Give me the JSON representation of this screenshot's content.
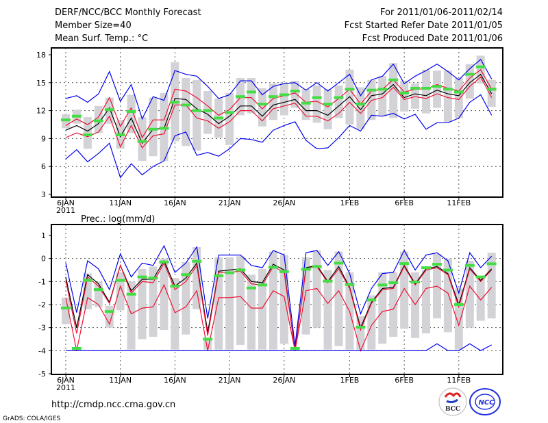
{
  "header": {
    "title": "DERF/NCC/BCC Monthly Forecast",
    "member_size": "Member Size=40",
    "variable": "Mean Surf. Temp.: °C",
    "period": "For 2011/01/06-2011/02/14",
    "started": "Fcst Started Refer Date 2011/01/05",
    "produced": "Fcst Produced Date 2011/01/06"
  },
  "footer": {
    "url": "http://cmdp.ncc.cma.gov.cn",
    "credit": "GrADS: COLA/IGES",
    "logo_left": "BCC",
    "logo_right": "NCC"
  },
  "colors": {
    "mean": "#000000",
    "spread": "#ee1133",
    "extreme": "#0000ee",
    "obs": "#44dd44",
    "range": "#d3d3d7"
  },
  "chart_data": [
    {
      "type": "line",
      "title": "Mean Surf. Temp.: °C",
      "ylim": [
        3,
        18
      ],
      "yticks": [
        "3",
        "6",
        "9",
        "12",
        "15",
        "18"
      ],
      "ytick_values": [
        3,
        6,
        9,
        12,
        15,
        18
      ],
      "xticks": [
        "6JAN",
        "11JAN",
        "16JAN",
        "21JAN",
        "26JAN",
        "1FEB",
        "6FEB",
        "11FEB"
      ],
      "xtick_index": [
        0,
        5,
        10,
        15,
        20,
        26,
        31,
        36
      ],
      "year_label": "2011",
      "grid": true,
      "days": 40,
      "series": [
        {
          "name": "ensemble mean",
          "values": [
            9.9,
            10.4,
            9.8,
            10.6,
            12.3,
            9.2,
            11.2,
            8.5,
            10.0,
            10.1,
            13.3,
            13.2,
            12.2,
            11.6,
            10.6,
            11.4,
            12.5,
            12.5,
            11.4,
            12.6,
            12.9,
            13.2,
            12.0,
            12.0,
            11.5,
            12.5,
            13.5,
            12.1,
            13.6,
            13.8,
            14.8,
            13.4,
            13.8,
            13.6,
            14.2,
            13.8,
            13.6,
            15.0,
            15.9,
            13.8
          ]
        },
        {
          "name": "spread upper",
          "values": [
            10.4,
            11.1,
            10.5,
            11.3,
            13.4,
            10.3,
            12.3,
            9.1,
            11.0,
            11.0,
            14.3,
            14.1,
            13.4,
            12.5,
            11.5,
            12.1,
            13.4,
            13.4,
            12.2,
            13.3,
            13.6,
            13.9,
            12.9,
            13.0,
            12.4,
            13.3,
            14.3,
            12.7,
            14.1,
            14.3,
            15.3,
            14.0,
            14.3,
            14.3,
            14.8,
            14.4,
            14.1,
            15.5,
            16.4,
            14.3
          ]
        },
        {
          "name": "spread lower",
          "values": [
            9.1,
            9.6,
            9.2,
            9.7,
            11.4,
            8.1,
            10.4,
            8.0,
            9.3,
            9.5,
            12.6,
            12.6,
            11.2,
            10.9,
            10.1,
            10.8,
            12.0,
            12.0,
            10.9,
            12.2,
            12.5,
            12.8,
            11.4,
            11.4,
            10.9,
            11.7,
            12.9,
            11.7,
            13.1,
            13.4,
            14.5,
            13.2,
            13.5,
            13.3,
            13.8,
            13.4,
            13.2,
            14.6,
            15.6,
            13.4
          ]
        },
        {
          "name": "ensemble max",
          "values": [
            13.3,
            13.6,
            12.9,
            13.8,
            16.2,
            13.0,
            14.8,
            11.1,
            13.5,
            13.1,
            16.3,
            15.9,
            15.7,
            14.6,
            13.3,
            13.7,
            15.2,
            15.2,
            13.7,
            14.6,
            14.9,
            15.0,
            14.2,
            15.0,
            14.1,
            15.0,
            15.9,
            13.6,
            15.3,
            15.7,
            17.0,
            14.9,
            15.7,
            16.3,
            17.0,
            16.2,
            15.3,
            16.5,
            17.5,
            15.4
          ]
        },
        {
          "name": "ensemble min",
          "values": [
            6.8,
            7.8,
            6.5,
            7.4,
            8.5,
            4.8,
            6.3,
            5.1,
            6.0,
            6.6,
            9.3,
            9.7,
            7.2,
            7.5,
            7.1,
            7.9,
            9.0,
            8.9,
            8.6,
            9.9,
            10.4,
            10.8,
            8.8,
            7.9,
            8.0,
            9.1,
            10.4,
            9.8,
            11.5,
            11.4,
            11.7,
            11.1,
            11.6,
            10.0,
            10.7,
            10.7,
            11.2,
            12.9,
            13.7,
            11.5
          ]
        },
        {
          "name": "observed / reference",
          "values": [
            11.0,
            11.4,
            9.4,
            10.9,
            12.1,
            9.4,
            11.9,
            8.7,
            10.0,
            10.1,
            12.9,
            12.6,
            12.0,
            12.0,
            11.2,
            11.8,
            13.5,
            14.0,
            12.7,
            13.5,
            13.7,
            14.1,
            12.8,
            13.4,
            12.7,
            13.4,
            14.3,
            12.7,
            14.2,
            14.3,
            15.3,
            13.9,
            14.4,
            14.4,
            14.6,
            14.3,
            14.0,
            15.9,
            16.7,
            14.3
          ]
        }
      ],
      "ranges": [
        [
          10.1,
          11.6
        ],
        [
          10.6,
          12.1
        ],
        [
          7.9,
          11.3
        ],
        [
          9.6,
          12.5
        ],
        [
          10.6,
          13.4
        ],
        [
          7.9,
          11.0
        ],
        [
          9.6,
          13.7
        ],
        [
          6.6,
          11.3
        ],
        [
          7.1,
          13.4
        ],
        [
          6.6,
          13.9
        ],
        [
          8.7,
          17.2
        ],
        [
          8.2,
          15.5
        ],
        [
          7.7,
          15.3
        ],
        [
          9.5,
          14.1
        ],
        [
          9.1,
          13.3
        ],
        [
          8.3,
          13.9
        ],
        [
          11.5,
          15.5
        ],
        [
          11.7,
          15.5
        ],
        [
          10.3,
          14.4
        ],
        [
          11.0,
          14.9
        ],
        [
          11.5,
          15.0
        ],
        [
          12.3,
          15.2
        ],
        [
          11.0,
          14.3
        ],
        [
          10.7,
          14.7
        ],
        [
          10.0,
          14.3
        ],
        [
          11.2,
          14.7
        ],
        [
          10.5,
          16.4
        ],
        [
          10.0,
          14.5
        ],
        [
          11.0,
          15.3
        ],
        [
          11.4,
          15.7
        ],
        [
          11.2,
          17.1
        ],
        [
          11.9,
          15.2
        ],
        [
          12.2,
          14.9
        ],
        [
          11.7,
          16.4
        ],
        [
          12.3,
          16.3
        ],
        [
          10.8,
          16.3
        ],
        [
          11.2,
          15.5
        ],
        [
          13.3,
          17.0
        ],
        [
          14.9,
          17.9
        ],
        [
          12.4,
          15.3
        ]
      ]
    },
    {
      "type": "line",
      "title": "Prec.: log(mm/d)",
      "ylim": [
        -5,
        1
      ],
      "yticks": [
        "-5",
        "-4",
        "-3",
        "-2",
        "-1",
        "0",
        "1"
      ],
      "ytick_values": [
        -5,
        -4,
        -3,
        -2,
        -1,
        0,
        1
      ],
      "xticks": [
        "6JAN",
        "11JAN",
        "16JAN",
        "21JAN",
        "26JAN",
        "1FEB",
        "6FEB",
        "11FEB"
      ],
      "xtick_index": [
        0,
        5,
        10,
        15,
        20,
        26,
        31,
        36
      ],
      "year_label": "2011",
      "grid": true,
      "days": 40,
      "series": [
        {
          "name": "ensemble mean",
          "values": [
            -0.8,
            -3.0,
            -0.7,
            -1.1,
            -1.9,
            -0.3,
            -1.4,
            -0.9,
            -0.9,
            -0.1,
            -1.2,
            -0.85,
            -0.2,
            -3.2,
            -0.55,
            -0.5,
            -0.45,
            -1.0,
            -1.05,
            -0.25,
            -0.5,
            -4.0,
            -0.4,
            -0.3,
            -1.0,
            -0.35,
            -1.25,
            -3.0,
            -1.9,
            -1.3,
            -1.25,
            -0.3,
            -1.1,
            -0.45,
            -0.35,
            -0.65,
            -2.0,
            -0.4,
            -0.95,
            -0.45
          ]
        },
        {
          "name": "spread upper",
          "values": [
            -0.95,
            -3.25,
            -0.8,
            -1.2,
            -1.95,
            -0.3,
            -1.5,
            -1.0,
            -1.05,
            -0.2,
            -1.35,
            -1.0,
            -0.3,
            -3.35,
            -0.6,
            -0.6,
            -0.55,
            -1.1,
            -1.15,
            -0.35,
            -0.6,
            -4.0,
            -0.45,
            -0.35,
            -1.05,
            -0.45,
            -1.3,
            -3.1,
            -1.95,
            -1.35,
            -1.3,
            -0.35,
            -1.15,
            -0.5,
            -0.4,
            -0.7,
            -2.1,
            -0.45,
            -1.0,
            -0.5
          ]
        },
        {
          "name": "spread lower",
          "values": [
            -1.7,
            -4.0,
            -1.7,
            -2.0,
            -2.85,
            -1.2,
            -2.4,
            -2.15,
            -2.1,
            -1.15,
            -2.35,
            -2.1,
            -1.4,
            -4.0,
            -1.7,
            -1.7,
            -1.65,
            -2.15,
            -2.15,
            -1.4,
            -1.65,
            -4.0,
            -1.4,
            -1.3,
            -1.95,
            -1.4,
            -2.3,
            -4.0,
            -2.9,
            -2.3,
            -2.2,
            -1.3,
            -2.0,
            -1.3,
            -1.2,
            -1.5,
            -2.9,
            -1.2,
            -1.8,
            -1.25
          ]
        },
        {
          "name": "ensemble max",
          "values": [
            -0.2,
            -2.35,
            -0.1,
            -0.45,
            -1.35,
            0.2,
            -0.8,
            -0.2,
            -0.3,
            0.55,
            -0.6,
            -0.2,
            0.5,
            -2.6,
            0.15,
            0.15,
            0.15,
            -0.3,
            -0.4,
            0.35,
            0.15,
            -3.8,
            0.25,
            0.35,
            -0.3,
            0.3,
            -0.65,
            -2.4,
            -1.3,
            -0.65,
            -0.6,
            0.35,
            -0.5,
            0.15,
            0.25,
            -0.1,
            -1.5,
            0.25,
            -0.4,
            0.1
          ]
        },
        {
          "name": "ensemble min",
          "values": [
            -4,
            -4,
            -4,
            -4,
            -4,
            -4,
            -4,
            -4,
            -4,
            -4,
            -4,
            -4,
            -4,
            -4,
            -4,
            -4,
            -4,
            -4,
            -4,
            -4,
            -4,
            -4,
            -4,
            -4,
            -4,
            -4,
            -4,
            -4,
            -4,
            -4,
            -4,
            -4,
            -4,
            -4,
            -3.7,
            -4,
            -4,
            -3.7,
            -4,
            -3.75
          ]
        },
        {
          "name": "observed / reference",
          "values": [
            -2.15,
            -3.9,
            -0.95,
            -1.35,
            -2.3,
            -0.95,
            -1.55,
            -0.8,
            -0.85,
            -0.15,
            -1.2,
            -0.7,
            -0.12,
            -3.5,
            -0.75,
            -0.62,
            -0.5,
            -1.28,
            -1.15,
            -0.38,
            -0.57,
            -3.9,
            -0.47,
            -0.35,
            -0.98,
            -0.2,
            -1.13,
            -2.98,
            -1.8,
            -1.15,
            -1.05,
            -0.22,
            -1.02,
            -0.4,
            -0.25,
            -0.5,
            -2.0,
            -0.3,
            -0.8,
            -0.23
          ]
        }
      ],
      "ranges": [
        [
          -2.85,
          -1.7
        ],
        [
          -4,
          -3.95
        ],
        [
          -2.2,
          -0.65
        ],
        [
          -2.1,
          -1.0
        ],
        [
          -3.0,
          -2.05
        ],
        [
          -2.25,
          -0.6
        ],
        [
          -3.95,
          -1.0
        ],
        [
          -3.5,
          -0.45
        ],
        [
          -3.4,
          -0.35
        ],
        [
          -3.1,
          0.0
        ],
        [
          -3.95,
          -0.85
        ],
        [
          -3.3,
          -0.15
        ],
        [
          -2.2,
          0.5
        ],
        [
          -3.95,
          -3.5
        ],
        [
          -3.95,
          0.05
        ],
        [
          -3.95,
          0.05
        ],
        [
          -3.75,
          0.1
        ],
        [
          -3.95,
          -0.7
        ],
        [
          -3.95,
          -0.45
        ],
        [
          -3.95,
          0.3
        ],
        [
          -3.7,
          0.15
        ],
        [
          -4,
          -3.95
        ],
        [
          -3.3,
          0.05
        ],
        [
          -3.0,
          0.35
        ],
        [
          -3.95,
          -0.5
        ],
        [
          -3.8,
          0.3
        ],
        [
          -3.95,
          -0.6
        ],
        [
          -3.95,
          -2.5
        ],
        [
          -3.95,
          -1.6
        ],
        [
          -3.7,
          -0.6
        ],
        [
          -3.4,
          -0.6
        ],
        [
          -3.05,
          0.3
        ],
        [
          -3.45,
          -0.6
        ],
        [
          -3.25,
          -0.5
        ],
        [
          -2.6,
          0.2
        ],
        [
          -3.2,
          0.0
        ],
        [
          -3.95,
          -1.3
        ],
        [
          -3.0,
          -0.1
        ],
        [
          -2.7,
          -0.85
        ],
        [
          -2.6,
          0.25
        ]
      ]
    }
  ]
}
